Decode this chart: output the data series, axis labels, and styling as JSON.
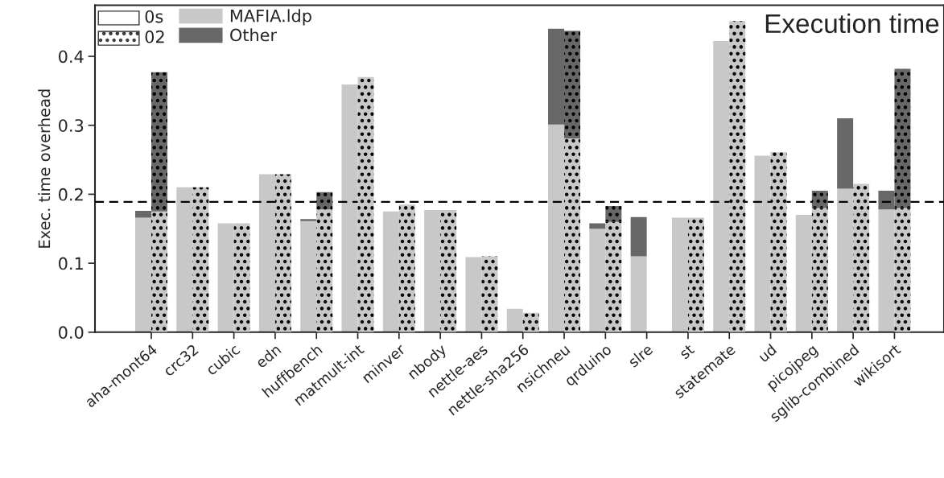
{
  "chart_data": [
    {
      "type": "bar",
      "stacked": true,
      "title": "Execution time",
      "ylabel": "Exec. time overhead",
      "annotations": [
        "0s"
      ],
      "categories": [
        "aha-mont64",
        "crc32",
        "cubic",
        "edn",
        "huffbench",
        "matmult-int",
        "minver",
        "nbody",
        "nettle-aes",
        "nettle-sha256",
        "nsichneu",
        "qrduino",
        "slre",
        "st",
        "statemate",
        "ud",
        "picojpeg",
        "sglib-combined",
        "wikisort"
      ],
      "series": [
        {
          "name": "MAFIA.ldp",
          "color": "#c8c8c8",
          "values": [
            0.166,
            0.21,
            0.158,
            0.229,
            0.161,
            0.359,
            0.175,
            0.177,
            0.109,
            0.034,
            0.301,
            0.15,
            0.11,
            0.166,
            0.422,
            0.256,
            0.17,
            0.208,
            0.178
          ]
        },
        {
          "name": "Other",
          "color": "#686868",
          "values": [
            0.01,
            0,
            0,
            0,
            0.003,
            0,
            0,
            0,
            0,
            0,
            0.139,
            0.008,
            0.057,
            0,
            0,
            0,
            0,
            0.102,
            0.027
          ]
        }
      ],
      "ylim": [
        0,
        0.474
      ],
      "yticks": [
        {
          "value": 0,
          "label": "0.0"
        },
        0.1,
        0.2,
        0.3,
        0.4
      ],
      "ref_lines": [
        {
          "axis": "y",
          "value": 0.189,
          "color": "#000000",
          "line_style": "dashed"
        }
      ],
      "legend": "top left",
      "grid": false
    },
    {
      "type": "bar",
      "stacked": true,
      "annotations": [
        "02"
      ],
      "tick_labels": false,
      "categories": [
        null,
        null,
        null,
        null,
        null,
        null,
        null,
        null,
        null,
        null,
        null,
        null,
        null,
        null,
        null,
        null,
        null,
        null,
        null
      ],
      "series": [
        {
          "color": "#c8c8c8",
          "values": [
            0.175,
            0.21,
            0.158,
            0.229,
            0.178,
            0.37,
            0.185,
            0.177,
            0.11,
            0.028,
            0.281,
            0.16,
            null,
            0.166,
            0.451,
            0.261,
            0.18,
            0.215,
            0.18
          ]
        },
        {
          "color": "#686868",
          "values": [
            0.202,
            0,
            0,
            0,
            0.025,
            0,
            0,
            0,
            0,
            0,
            0.156,
            0.023,
            null,
            0,
            0,
            0,
            0.025,
            0,
            0.202
          ]
        }
      ],
      "ylim": [
        0,
        0.474
      ],
      "grid": false
    }
  ]
}
